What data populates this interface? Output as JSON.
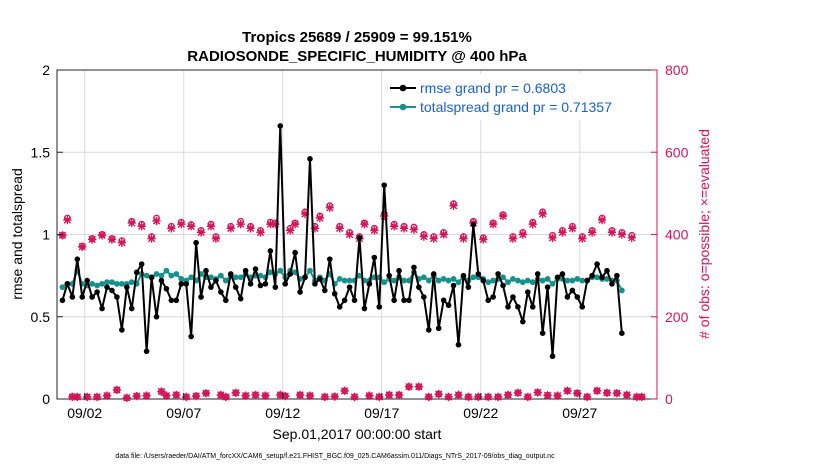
{
  "chart_data": {
    "type": "line",
    "title_line1": "Tropics 25689 / 25909 = 99.151%",
    "title_line2": "RADIOSONDE_SPECIFIC_HUMIDITY @ 400 hPa",
    "xlabel": "Sep.01,2017 00:00:00 start",
    "ylabel_left": "rmse and totalspread",
    "ylabel_right": "# of obs: o=possible; ×=evaluated",
    "footer": "data file: /Users/raeder/DAI/ATM_forcXX/CAM6_setup/f.e21.FHIST_BGC.f09_025.CAM6assim.011/Diags_NTrS_2017-09/obs_diag_output.nc",
    "xlim": [
      0.6,
      30.9
    ],
    "ylim_left": [
      0,
      2
    ],
    "ylim_right": [
      0,
      800
    ],
    "x_ticks": [
      2,
      7,
      12,
      17,
      22,
      27
    ],
    "x_tick_labels": [
      "09/02",
      "09/07",
      "09/12",
      "09/17",
      "09/22",
      "09/27"
    ],
    "y_ticks_left": [
      0,
      0.5,
      1,
      1.5,
      2
    ],
    "y_tick_labels_left": [
      "0",
      "0.5",
      "1",
      "1.5",
      "2"
    ],
    "y_ticks_right": [
      0,
      200,
      400,
      600,
      800
    ],
    "y_tick_labels_right": [
      "0",
      "200",
      "400",
      "600",
      "800"
    ],
    "x_start": 0.875,
    "x_step": 0.25,
    "series": [
      {
        "name": "rmse grand pr = 0.6803",
        "color": "#000000",
        "values": [
          0.6,
          0.7,
          0.62,
          0.85,
          0.62,
          0.72,
          0.62,
          0.65,
          0.55,
          0.68,
          0.66,
          0.62,
          0.42,
          0.68,
          0.55,
          0.77,
          0.82,
          0.29,
          0.74,
          0.5,
          0.72,
          0.67,
          0.6,
          0.6,
          0.7,
          0.7,
          0.38,
          0.95,
          0.62,
          0.78,
          0.68,
          0.72,
          0.65,
          0.6,
          0.76,
          0.68,
          0.61,
          0.78,
          0.7,
          0.79,
          0.69,
          0.7,
          0.9,
          0.68,
          1.66,
          0.7,
          0.76,
          0.89,
          0.65,
          0.74,
          1.46,
          0.7,
          0.73,
          0.66,
          0.85,
          0.64,
          0.56,
          0.6,
          0.68,
          0.6,
          0.98,
          0.55,
          0.7,
          0.86,
          0.56,
          1.3,
          0.75,
          0.6,
          0.78,
          0.6,
          0.6,
          0.8,
          0.68,
          0.62,
          0.42,
          0.76,
          0.43,
          0.6,
          0.57,
          0.69,
          0.33,
          0.75,
          0.68,
          1.06,
          0.76,
          0.72,
          0.6,
          0.62,
          0.76,
          0.69,
          0.56,
          0.62,
          0.56,
          0.47,
          0.65,
          0.56,
          0.76,
          0.4,
          0.68,
          0.26,
          0.74,
          0.76,
          0.62,
          0.66,
          0.62,
          0.56,
          0.72,
          0.75,
          0.82,
          0.74,
          0.78,
          0.7,
          0.75,
          0.4
        ]
      },
      {
        "name": "totalspread grand pr = 0.71357",
        "color": "#17918c",
        "values": [
          0.68,
          0.7,
          0.7,
          0.78,
          0.7,
          0.69,
          0.7,
          0.69,
          0.7,
          0.71,
          0.71,
          0.7,
          0.7,
          0.7,
          0.71,
          0.7,
          0.76,
          0.75,
          0.74,
          0.76,
          0.75,
          0.78,
          0.75,
          0.76,
          0.73,
          0.72,
          0.74,
          0.72,
          0.76,
          0.74,
          0.74,
          0.73,
          0.75,
          0.72,
          0.75,
          0.74,
          0.74,
          0.76,
          0.74,
          0.75,
          0.75,
          0.74,
          0.77,
          0.76,
          0.78,
          0.74,
          0.78,
          0.77,
          0.73,
          0.74,
          0.78,
          0.72,
          0.74,
          0.72,
          0.76,
          0.7,
          0.73,
          0.72,
          0.72,
          0.72,
          0.75,
          0.72,
          0.72,
          0.74,
          0.74,
          0.71,
          0.73,
          0.72,
          0.74,
          0.72,
          0.72,
          0.77,
          0.73,
          0.74,
          0.72,
          0.75,
          0.72,
          0.73,
          0.72,
          0.73,
          0.71,
          0.74,
          0.72,
          0.74,
          0.74,
          0.73,
          0.71,
          0.72,
          0.73,
          0.74,
          0.71,
          0.73,
          0.72,
          0.71,
          0.72,
          0.71,
          0.73,
          0.72,
          0.73,
          0.7,
          0.73,
          0.73,
          0.72,
          0.72,
          0.73,
          0.72,
          0.72,
          0.74,
          0.74,
          0.73,
          0.73,
          0.72,
          0.72,
          0.66
        ]
      }
    ],
    "obs_possible": {
      "name": "possible",
      "color": "#d6145a",
      "values": [
        398,
        440,
        6,
        5,
        372,
        5,
        390,
        5,
        400,
        8,
        390,
        22,
        385,
        3,
        432,
        7,
        425,
        8,
        395,
        440,
        18,
        8,
        420,
        10,
        430,
        5,
        424,
        7,
        410,
        14,
        425,
        395,
        10,
        5,
        420,
        15,
        432,
        8,
        420,
        10,
        410,
        8,
        430,
        428,
        10,
        7,
        415,
        428,
        10,
        455,
        8,
        420,
        445,
        5,
        470,
        6,
        420,
        20,
        405,
        5,
        395,
        428,
        8,
        415,
        5,
        450,
        10,
        425,
        10,
        420,
        30,
        418,
        30,
        400,
        5,
        395,
        12,
        405,
        5,
        475,
        10,
        395,
        5,
        432,
        5,
        392,
        5,
        428,
        5,
        448,
        10,
        395,
        15,
        405,
        5,
        430,
        16,
        455,
        9,
        398,
        8,
        410,
        20,
        420,
        14,
        395,
        5,
        410,
        20,
        440,
        15,
        410,
        14,
        405,
        10,
        398,
        5,
        5
      ]
    },
    "obs_evaluated": {
      "name": "evaluated",
      "color": "#d6145a",
      "values": [
        398,
        435,
        5,
        5,
        370,
        5,
        388,
        5,
        398,
        8,
        388,
        22,
        380,
        3,
        428,
        7,
        420,
        8,
        390,
        433,
        18,
        8,
        415,
        10,
        425,
        5,
        420,
        7,
        405,
        14,
        420,
        390,
        10,
        5,
        415,
        15,
        425,
        8,
        415,
        10,
        405,
        8,
        425,
        425,
        10,
        7,
        410,
        425,
        10,
        450,
        8,
        415,
        440,
        5,
        465,
        6,
        415,
        20,
        400,
        5,
        390,
        425,
        8,
        410,
        5,
        445,
        10,
        420,
        10,
        415,
        30,
        412,
        30,
        395,
        5,
        390,
        12,
        400,
        5,
        470,
        10,
        390,
        5,
        428,
        5,
        388,
        5,
        425,
        5,
        445,
        10,
        390,
        15,
        400,
        5,
        425,
        16,
        450,
        9,
        392,
        8,
        405,
        20,
        415,
        14,
        390,
        5,
        405,
        20,
        435,
        15,
        405,
        14,
        400,
        10,
        392,
        5,
        5
      ]
    },
    "legend_position": "top-right"
  }
}
